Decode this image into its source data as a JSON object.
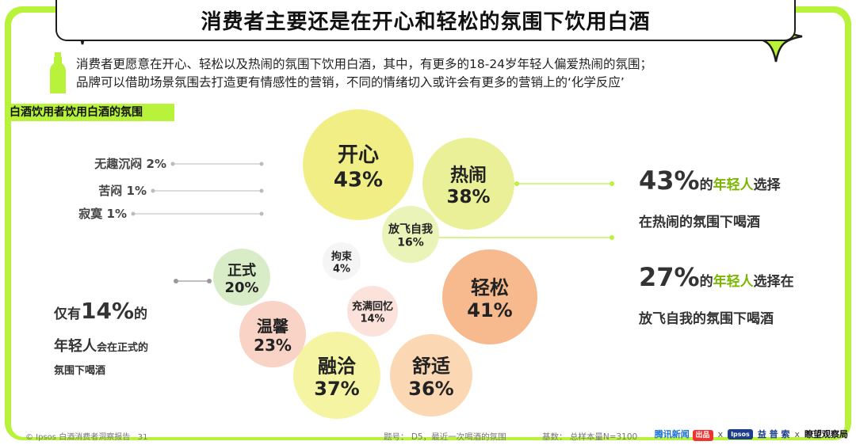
{
  "title": "消费者主要还是在开心和轻松的氛围下饮用白酒",
  "description": {
    "line1": "消费者更愿意在开心、轻松以及热闹的氛围下饮用白酒，其中，有更多的18-24岁年轻人偏爱热闹的氛围；",
    "line2": "品牌可以借助场景氛围去打造更有情感性的营销，不同的情绪切入或许会有更多的营销上的‘化学反应’"
  },
  "section_label": "白酒饮用者饮用白酒的氛围",
  "chart_data": {
    "type": "bubble",
    "categories": [
      "开心",
      "热闹",
      "放飞自我",
      "轻松",
      "舒适",
      "融洽",
      "温馨",
      "正式",
      "拘束",
      "充满回忆",
      "无趣沉闷",
      "苦闷",
      "寂寞"
    ],
    "values": [
      43,
      38,
      16,
      41,
      36,
      37,
      23,
      20,
      4,
      14,
      2,
      1,
      1
    ],
    "unit": "%",
    "bubble_colors": {
      "开心": "#f1ee86",
      "热闹": "#e9f097",
      "放飞自我": "#eaf3b8",
      "轻松": "#f7b98e",
      "舒适": "#fbd8b3",
      "融洽": "#f5f4a3",
      "温馨": "#f8d3c6",
      "正式": "#d9ecc8",
      "拘束": "#f5f5f5",
      "充满回忆": "#fbe3dc"
    }
  },
  "annotations": {
    "a1": {
      "pct": "43%",
      "of": "的",
      "who": "年轻人",
      "rest": "选择",
      "line2": "在热闹的氛围下喝酒"
    },
    "a2": {
      "pct": "27%",
      "of": "的",
      "who": "年轻人",
      "rest": "选择在",
      "line2": "放飞自我的氛围下喝酒"
    },
    "a3": {
      "pre": "仅有",
      "pct": "14%",
      "of": "的",
      "who": "年轻人",
      "rest": "会在正式的",
      "line3": "氛围下喝酒"
    }
  },
  "footer": {
    "source": "© Ipsos 白酒消费者洞察报告",
    "page": "31",
    "question": "题号：   D5，最近一次喝酒的氛围",
    "base": "基数：  总样本量N=3100"
  },
  "logos": {
    "tencent": "腾讯新闻",
    "tencent_sub": "出品",
    "x1": "x",
    "ipsos": "Ipsos",
    "ipsos_cn": "益 普 索",
    "x2": "x",
    "guancha": "瞭望观察局"
  },
  "colors": {
    "accent": "#b8f23a",
    "highlight": "#7ab800"
  }
}
